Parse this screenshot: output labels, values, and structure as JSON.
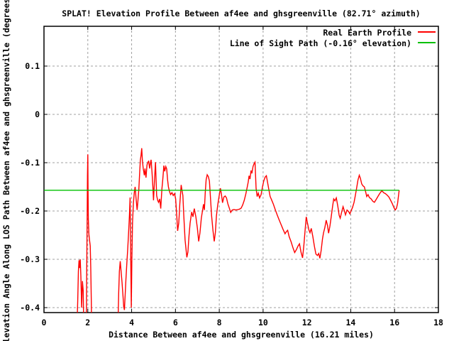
{
  "chart_data": {
    "type": "line",
    "title": "SPLAT! Elevation Profile Between af4ee and ghsgreenville (82.71° azimuth)",
    "xlabel": "Distance Between af4ee and ghsgreenville (16.21 miles)",
    "ylabel": "Elevation Angle Along LOS Path Between af4ee and ghsgreenville (degrees)",
    "xlim": [
      0,
      18
    ],
    "ylim": [
      -0.41,
      0.18
    ],
    "xticks": [
      0,
      2,
      4,
      6,
      8,
      10,
      12,
      14,
      16,
      18
    ],
    "xtick_labels": [
      "0",
      "2",
      "4",
      "6",
      "8",
      "10",
      "12",
      "14",
      "16",
      "18"
    ],
    "yticks": [
      0.1,
      0,
      -0.1,
      -0.2,
      -0.3,
      -0.4
    ],
    "ytick_labels": [
      "0.1",
      "0",
      "-0.1",
      "-0.2",
      "-0.3",
      "-0.4"
    ],
    "grid": true,
    "grid_style": "dashed",
    "background_color": "#ffffff",
    "axis_color": "#000000",
    "grid_color": "#a0a0a0",
    "legend_position": "top-right-inside",
    "series": [
      {
        "name": "Real Earth Profile",
        "color": "#ff0000",
        "style": "line",
        "segments": [
          [
            [
              1.5,
              -0.45
            ],
            [
              1.54,
              -0.385
            ],
            [
              1.57,
              -0.325
            ],
            [
              1.6,
              -0.302
            ],
            [
              1.63,
              -0.318
            ],
            [
              1.655,
              -0.3
            ],
            [
              1.685,
              -0.335
            ],
            [
              1.72,
              -0.4
            ],
            [
              1.755,
              -0.345
            ],
            [
              1.79,
              -0.365
            ],
            [
              1.82,
              -0.45
            ]
          ],
          [
            [
              1.93,
              -0.45
            ],
            [
              1.95,
              -0.33
            ],
            [
              1.97,
              -0.21
            ],
            [
              1.985,
              -0.125
            ],
            [
              2.0,
              -0.083
            ],
            [
              2.012,
              -0.15
            ],
            [
              2.025,
              -0.215
            ],
            [
              2.05,
              -0.248
            ],
            [
              2.08,
              -0.26
            ],
            [
              2.11,
              -0.272
            ],
            [
              2.135,
              -0.315
            ],
            [
              2.16,
              -0.385
            ],
            [
              2.18,
              -0.45
            ]
          ],
          [
            [
              3.37,
              -0.45
            ],
            [
              3.41,
              -0.37
            ],
            [
              3.44,
              -0.325
            ],
            [
              3.48,
              -0.304
            ],
            [
              3.52,
              -0.325
            ],
            [
              3.56,
              -0.347
            ],
            [
              3.6,
              -0.372
            ],
            [
              3.64,
              -0.398
            ],
            [
              3.67,
              -0.405
            ],
            [
              3.7,
              -0.378
            ],
            [
              3.74,
              -0.342
            ],
            [
              3.78,
              -0.308
            ],
            [
              3.82,
              -0.28
            ],
            [
              3.86,
              -0.247
            ],
            [
              3.9,
              -0.208
            ],
            [
              3.93,
              -0.172
            ],
            [
              3.96,
              -0.3
            ],
            [
              3.985,
              -0.4
            ],
            [
              4.01,
              -0.3
            ],
            [
              4.04,
              -0.225
            ],
            [
              4.08,
              -0.185
            ],
            [
              4.12,
              -0.162
            ],
            [
              4.16,
              -0.15
            ],
            [
              4.2,
              -0.172
            ],
            [
              4.25,
              -0.198
            ],
            [
              4.29,
              -0.178
            ],
            [
              4.33,
              -0.155
            ],
            [
              4.37,
              -0.118
            ],
            [
              4.4,
              -0.094
            ],
            [
              4.43,
              -0.085
            ],
            [
              4.46,
              -0.07
            ],
            [
              4.49,
              -0.095
            ],
            [
              4.53,
              -0.112
            ],
            [
              4.58,
              -0.126
            ],
            [
              4.61,
              -0.112
            ],
            [
              4.655,
              -0.131
            ],
            [
              4.7,
              -0.105
            ],
            [
              4.74,
              -0.099
            ],
            [
              4.78,
              -0.097
            ],
            [
              4.82,
              -0.112
            ],
            [
              4.86,
              -0.1
            ],
            [
              4.89,
              -0.094
            ],
            [
              4.93,
              -0.12
            ],
            [
              4.97,
              -0.15
            ],
            [
              5.0,
              -0.178
            ],
            [
              5.05,
              -0.13
            ],
            [
              5.09,
              -0.099
            ],
            [
              5.14,
              -0.168
            ],
            [
              5.19,
              -0.178
            ],
            [
              5.23,
              -0.182
            ],
            [
              5.28,
              -0.175
            ],
            [
              5.33,
              -0.195
            ],
            [
              5.38,
              -0.155
            ],
            [
              5.42,
              -0.136
            ],
            [
              5.47,
              -0.106
            ],
            [
              5.51,
              -0.118
            ],
            [
              5.56,
              -0.108
            ],
            [
              5.6,
              -0.113
            ],
            [
              5.64,
              -0.135
            ],
            [
              5.68,
              -0.15
            ],
            [
              5.73,
              -0.16
            ],
            [
              5.78,
              -0.166
            ],
            [
              5.84,
              -0.162
            ],
            [
              5.9,
              -0.168
            ],
            [
              5.96,
              -0.164
            ],
            [
              6.01,
              -0.175
            ],
            [
              6.06,
              -0.21
            ],
            [
              6.1,
              -0.241
            ],
            [
              6.15,
              -0.225
            ],
            [
              6.2,
              -0.185
            ],
            [
              6.26,
              -0.146
            ],
            [
              6.3,
              -0.158
            ],
            [
              6.34,
              -0.168
            ],
            [
              6.38,
              -0.21
            ],
            [
              6.44,
              -0.26
            ],
            [
              6.52,
              -0.296
            ],
            [
              6.57,
              -0.285
            ],
            [
              6.62,
              -0.25
            ],
            [
              6.67,
              -0.225
            ],
            [
              6.74,
              -0.202
            ],
            [
              6.8,
              -0.212
            ],
            [
              6.86,
              -0.195
            ],
            [
              6.93,
              -0.212
            ],
            [
              7.0,
              -0.235
            ],
            [
              7.06,
              -0.263
            ],
            [
              7.12,
              -0.245
            ],
            [
              7.18,
              -0.215
            ],
            [
              7.24,
              -0.198
            ],
            [
              7.28,
              -0.186
            ],
            [
              7.32,
              -0.198
            ],
            [
              7.36,
              -0.163
            ],
            [
              7.4,
              -0.135
            ],
            [
              7.45,
              -0.125
            ],
            [
              7.5,
              -0.129
            ],
            [
              7.55,
              -0.138
            ],
            [
              7.6,
              -0.175
            ],
            [
              7.65,
              -0.21
            ],
            [
              7.71,
              -0.24
            ],
            [
              7.77,
              -0.263
            ],
            [
              7.82,
              -0.245
            ],
            [
              7.87,
              -0.21
            ],
            [
              7.93,
              -0.188
            ],
            [
              7.99,
              -0.17
            ],
            [
              8.05,
              -0.153
            ],
            [
              8.1,
              -0.166
            ],
            [
              8.15,
              -0.183
            ],
            [
              8.21,
              -0.171
            ],
            [
              8.27,
              -0.169
            ],
            [
              8.33,
              -0.173
            ],
            [
              8.39,
              -0.185
            ],
            [
              8.45,
              -0.193
            ],
            [
              8.52,
              -0.203
            ],
            [
              8.59,
              -0.198
            ],
            [
              8.67,
              -0.197
            ],
            [
              8.76,
              -0.198
            ],
            [
              8.85,
              -0.197
            ],
            [
              8.93,
              -0.196
            ],
            [
              9.0,
              -0.194
            ],
            [
              9.07,
              -0.187
            ],
            [
              9.14,
              -0.178
            ],
            [
              9.21,
              -0.165
            ],
            [
              9.27,
              -0.152
            ],
            [
              9.32,
              -0.14
            ],
            [
              9.36,
              -0.127
            ],
            [
              9.4,
              -0.134
            ],
            [
              9.45,
              -0.116
            ],
            [
              9.49,
              -0.122
            ],
            [
              9.54,
              -0.108
            ],
            [
              9.58,
              -0.103
            ],
            [
              9.63,
              -0.099
            ],
            [
              9.68,
              -0.153
            ],
            [
              9.73,
              -0.17
            ],
            [
              9.78,
              -0.163
            ],
            [
              9.84,
              -0.173
            ],
            [
              9.91,
              -0.166
            ],
            [
              9.97,
              -0.15
            ],
            [
              10.03,
              -0.138
            ],
            [
              10.09,
              -0.13
            ],
            [
              10.15,
              -0.127
            ],
            [
              10.2,
              -0.14
            ],
            [
              10.26,
              -0.155
            ],
            [
              10.32,
              -0.17
            ],
            [
              10.38,
              -0.176
            ],
            [
              10.47,
              -0.186
            ],
            [
              10.56,
              -0.198
            ],
            [
              10.64,
              -0.208
            ],
            [
              10.73,
              -0.218
            ],
            [
              10.82,
              -0.228
            ],
            [
              10.91,
              -0.238
            ],
            [
              11.0,
              -0.247
            ],
            [
              11.06,
              -0.243
            ],
            [
              11.12,
              -0.24
            ],
            [
              11.19,
              -0.253
            ],
            [
              11.28,
              -0.264
            ],
            [
              11.37,
              -0.277
            ],
            [
              11.44,
              -0.286
            ],
            [
              11.52,
              -0.28
            ],
            [
              11.6,
              -0.272
            ],
            [
              11.66,
              -0.268
            ],
            [
              11.73,
              -0.285
            ],
            [
              11.8,
              -0.297
            ],
            [
              11.86,
              -0.272
            ],
            [
              11.92,
              -0.238
            ],
            [
              11.97,
              -0.212
            ],
            [
              12.03,
              -0.226
            ],
            [
              12.09,
              -0.239
            ],
            [
              12.14,
              -0.245
            ],
            [
              12.2,
              -0.236
            ],
            [
              12.27,
              -0.253
            ],
            [
              12.34,
              -0.273
            ],
            [
              12.41,
              -0.289
            ],
            [
              12.48,
              -0.292
            ],
            [
              12.54,
              -0.288
            ],
            [
              12.59,
              -0.298
            ],
            [
              12.65,
              -0.282
            ],
            [
              12.71,
              -0.258
            ],
            [
              12.76,
              -0.245
            ],
            [
              12.82,
              -0.234
            ],
            [
              12.88,
              -0.219
            ],
            [
              12.94,
              -0.23
            ],
            [
              12.99,
              -0.246
            ],
            [
              13.05,
              -0.231
            ],
            [
              13.11,
              -0.211
            ],
            [
              13.17,
              -0.191
            ],
            [
              13.22,
              -0.175
            ],
            [
              13.28,
              -0.179
            ],
            [
              13.34,
              -0.173
            ],
            [
              13.41,
              -0.19
            ],
            [
              13.47,
              -0.209
            ],
            [
              13.52,
              -0.215
            ],
            [
              13.58,
              -0.203
            ],
            [
              13.65,
              -0.191
            ],
            [
              13.71,
              -0.2
            ],
            [
              13.76,
              -0.208
            ],
            [
              13.83,
              -0.198
            ],
            [
              13.9,
              -0.201
            ],
            [
              13.96,
              -0.206
            ],
            [
              14.02,
              -0.199
            ],
            [
              14.08,
              -0.193
            ],
            [
              14.15,
              -0.182
            ],
            [
              14.21,
              -0.168
            ],
            [
              14.27,
              -0.152
            ],
            [
              14.33,
              -0.136
            ],
            [
              14.39,
              -0.126
            ],
            [
              14.44,
              -0.132
            ],
            [
              14.5,
              -0.144
            ],
            [
              14.56,
              -0.148
            ],
            [
              14.62,
              -0.15
            ],
            [
              14.68,
              -0.16
            ],
            [
              14.73,
              -0.17
            ],
            [
              14.79,
              -0.166
            ],
            [
              14.85,
              -0.172
            ],
            [
              14.93,
              -0.175
            ],
            [
              15.01,
              -0.18
            ],
            [
              15.08,
              -0.182
            ],
            [
              15.16,
              -0.176
            ],
            [
              15.24,
              -0.17
            ],
            [
              15.32,
              -0.164
            ],
            [
              15.42,
              -0.158
            ],
            [
              15.5,
              -0.162
            ],
            [
              15.58,
              -0.164
            ],
            [
              15.66,
              -0.167
            ],
            [
              15.74,
              -0.171
            ],
            [
              15.82,
              -0.178
            ],
            [
              15.9,
              -0.185
            ],
            [
              15.97,
              -0.193
            ],
            [
              16.03,
              -0.198
            ],
            [
              16.09,
              -0.194
            ],
            [
              16.14,
              -0.184
            ],
            [
              16.18,
              -0.168
            ],
            [
              16.21,
              -0.157
            ]
          ]
        ]
      },
      {
        "name": "Line of Sight Path (-0.16° elevation)",
        "color": "#00c000",
        "style": "line",
        "los_elevation_deg": -0.16,
        "segments": [
          [
            [
              0,
              -0.157
            ],
            [
              16.21,
              -0.157
            ]
          ]
        ]
      }
    ]
  }
}
